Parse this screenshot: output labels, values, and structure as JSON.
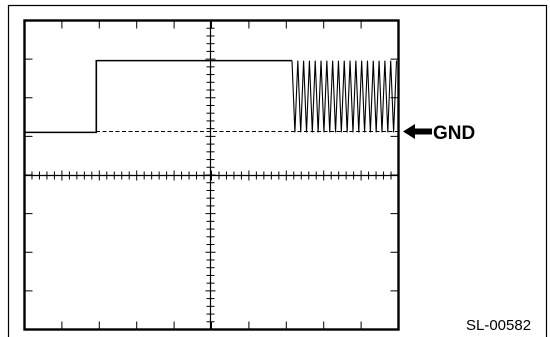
{
  "annotations": {
    "gnd_label": "GND",
    "gnd_arrow_icon": "left-arrow-icon",
    "figure_code": "SL-00582"
  },
  "colors": {
    "ink": "#000000",
    "background": "#ffffff"
  },
  "scope": {
    "grid_divisions_x": 10,
    "grid_divisions_y": 8,
    "minor_ticks_per_division": 5
  },
  "trace": {
    "baseline_level_div": -1,
    "high_level_div": -3,
    "step_rise_div": 2,
    "oscillation_start_div": 7.5,
    "oscillation_end_div": 10,
    "oscillation_cycles": 18
  }
}
